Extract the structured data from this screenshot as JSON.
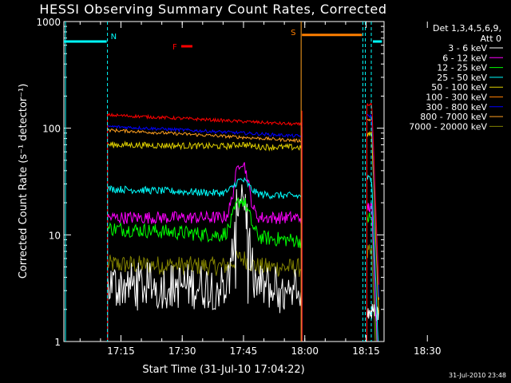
{
  "chart_data": {
    "type": "line",
    "title": "HESSI Observing Summary Count Rates, Corrected",
    "xlabel": "Start Time (31-Jul-10 17:04:22)",
    "ylabel": "Corrected Count Rate (s⁻¹ detector⁻¹)",
    "x_tick_labels": [
      "17:15",
      "17:30",
      "17:45",
      "18:00",
      "18:15",
      "18:30"
    ],
    "y_tick_labels": [
      "1",
      "10",
      "100",
      "1000"
    ],
    "y_scale": "log",
    "ylim": [
      1,
      1000
    ],
    "xlim_minutes": [
      -3.37,
      75.0
    ],
    "legend_header": [
      "Det 1,3,4,5,6,9,",
      "Att 0"
    ],
    "legend_placement": "right-outside",
    "series": [
      {
        "name": "3 - 6 keV",
        "color": "#ffffff"
      },
      {
        "name": "6 - 12 keV",
        "color": "#ff00ff"
      },
      {
        "name": "12 - 25 keV",
        "color": "#00ff00"
      },
      {
        "name": "25 - 50 keV",
        "color": "#00ffff"
      },
      {
        "name": "50 - 100 keV",
        "color": "#e0d000"
      },
      {
        "name": "100 - 300 keV",
        "color": "#ff7f00"
      },
      {
        "name": "300 - 800 keV",
        "color": "#0000ff"
      },
      {
        "name": "800 - 7000 keV",
        "color": "#ffa020"
      },
      {
        "name": "7000 - 20000 keV",
        "color": "#808000"
      }
    ],
    "annotations": [
      {
        "text": "N",
        "color": "#00ffff"
      },
      {
        "text": "S",
        "color": "#ff7f00"
      },
      {
        "text": "F",
        "color": "#ff0000"
      }
    ],
    "timestamp": "31-Jul-2010 23:48"
  }
}
